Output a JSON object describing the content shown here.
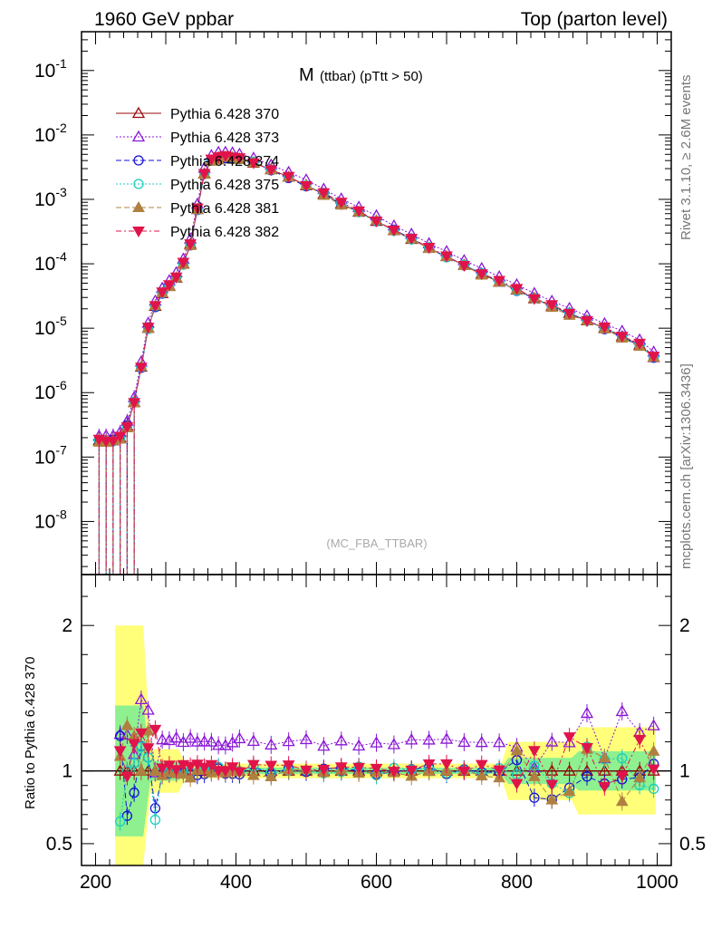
{
  "header": {
    "left": "1960 GeV ppbar",
    "right": "Top (parton level)"
  },
  "side_labels": {
    "rivet": "Rivet 3.1.10, ≥ 2.6M events",
    "mcplots": "mcplots.cern.ch [arXiv:1306.3436]"
  },
  "chart_data": [
    {
      "type": "line",
      "panel": "main",
      "title": "M (ttbar) (pTtt > 50)",
      "title_main": "M",
      "title_sub": "(ttbar) (pTtt > 50)",
      "watermark": "(MC_FBA_TTBAR)",
      "yscale": "log",
      "xlim": [
        180,
        1020
      ],
      "ylim": [
        1.5e-09,
        0.4
      ],
      "y_tick_labels": [
        "10^-8",
        "10^-7",
        "10^-6",
        "10^-5",
        "10^-4",
        "10^-3",
        "10^-2",
        "10^-1"
      ],
      "legend_position": "top-left",
      "x": [
        205,
        215,
        225,
        235,
        245,
        255,
        265,
        275,
        285,
        295,
        305,
        315,
        325,
        335,
        345,
        355,
        365,
        375,
        385,
        395,
        405,
        425,
        450,
        475,
        500,
        525,
        550,
        575,
        600,
        625,
        650,
        675,
        700,
        725,
        750,
        775,
        800,
        825,
        850,
        875,
        900,
        925,
        950,
        975,
        995
      ],
      "y": [
        1.8e-07,
        1.8e-07,
        1.8e-07,
        2e-07,
        3e-07,
        7e-07,
        2.5e-06,
        1e-05,
        2.2e-05,
        3.5e-05,
        4.5e-05,
        6e-05,
        0.0001,
        0.0002,
        0.0007,
        0.0025,
        0.004,
        0.0044,
        0.0045,
        0.0044,
        0.0042,
        0.0037,
        0.0029,
        0.0022,
        0.00165,
        0.0012,
        0.00086,
        0.00063,
        0.00046,
        0.00033,
        0.00024,
        0.000175,
        0.00013,
        9.5e-05,
        7e-05,
        5.2e-05,
        3.9e-05,
        2.9e-05,
        2.2e-05,
        1.7e-05,
        1.3e-05,
        1e-05,
        7.5e-06,
        5.5e-06,
        3.5e-06
      ],
      "series": [
        {
          "name": "Pythia 6.428 370",
          "color": "#9b0b0b",
          "marker": "triangle-open",
          "dash": "solid",
          "scale": 1.0,
          "jitter": 0.01
        },
        {
          "name": "Pythia 6.428 373",
          "color": "#8a17d6",
          "marker": "triangle-open",
          "dash": "dotted",
          "scale": 1.2,
          "jitter": 0.02
        },
        {
          "name": "Pythia 6.428 374",
          "color": "#1212d8",
          "marker": "circle-open",
          "dash": "dashed",
          "scale": 1.0,
          "jitter": 0.04
        },
        {
          "name": "Pythia 6.428 375",
          "color": "#18cfc0",
          "marker": "circle-open",
          "dash": "dotted",
          "scale": 1.0,
          "jitter": 0.03
        },
        {
          "name": "Pythia 6.428 381",
          "color": "#b08040",
          "marker": "triangle-filled",
          "dash": "dashed",
          "scale": 0.98,
          "jitter": 0.05
        },
        {
          "name": "Pythia 6.428 382",
          "color": "#e0144a",
          "marker": "triangle-down-filled",
          "dash": "dashdot",
          "scale": 1.02,
          "jitter": 0.04
        }
      ]
    },
    {
      "type": "line",
      "panel": "ratio",
      "ylabel": "Ratio to Pythia 6.428 370",
      "xlim": [
        180,
        1020
      ],
      "ylim": [
        0.35,
        2.35
      ],
      "x_ticks": [
        200,
        400,
        600,
        800,
        1000
      ],
      "y_ticks": [
        0.5,
        1,
        2
      ],
      "band_colors": {
        "inner": "#8ef08e",
        "outer": "#ffff7a"
      },
      "series": [
        {
          "name": "Pythia 6.428 370",
          "color": "#9b0b0b",
          "ratio": 1.0
        },
        {
          "name": "Pythia 6.428 373",
          "color": "#8a17d6",
          "ratio": 1.2
        },
        {
          "name": "Pythia 6.428 374",
          "color": "#1212d8",
          "ratio": 1.0
        },
        {
          "name": "Pythia 6.428 375",
          "color": "#18cfc0",
          "ratio": 1.0
        },
        {
          "name": "Pythia 6.428 381",
          "color": "#b08040",
          "ratio": 0.98
        },
        {
          "name": "Pythia 6.428 382",
          "color": "#e0144a",
          "ratio": 1.02
        }
      ]
    }
  ]
}
